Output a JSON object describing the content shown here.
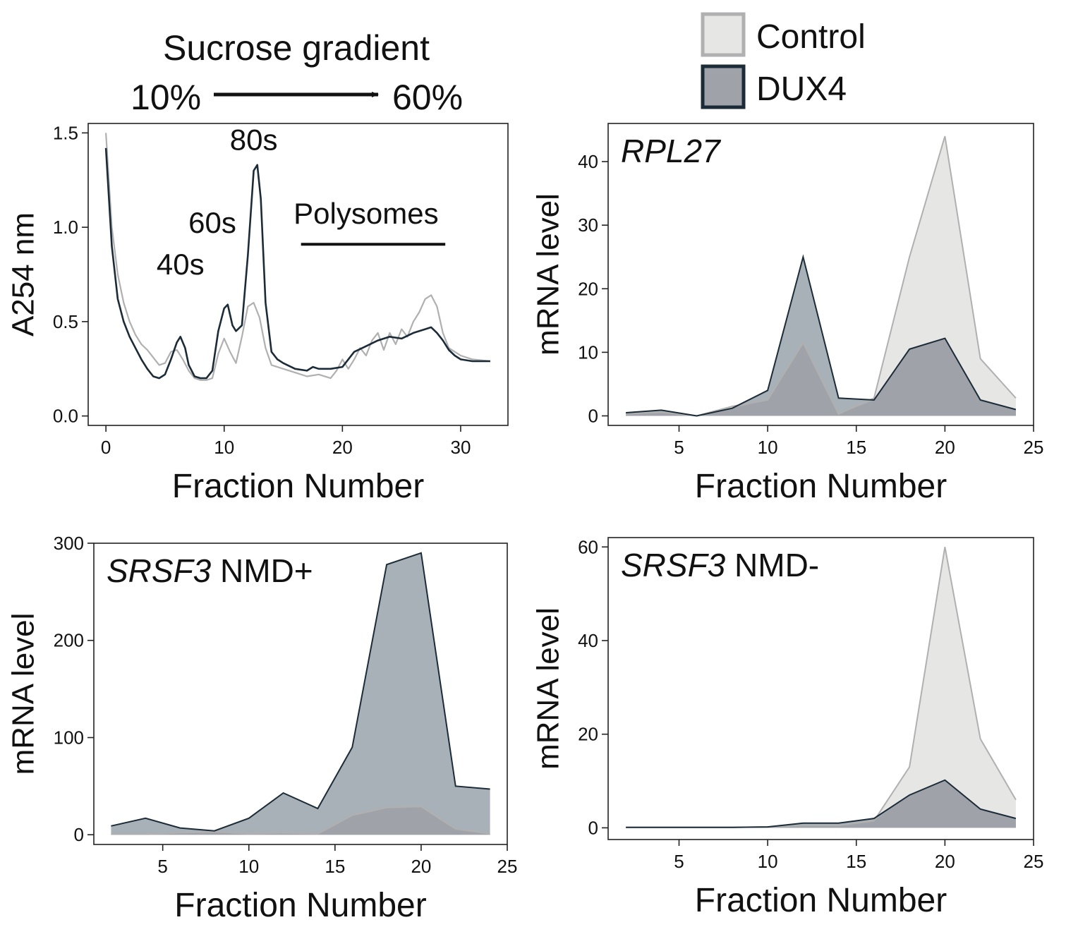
{
  "colors": {
    "control_line": "#b0b0b0",
    "dux4_line": "#1c2b38",
    "control_fill": "#e6e6e4",
    "dux4_fill": "#a9b1b8",
    "overlap_fill": "#9fa3a9",
    "axis": "#222222"
  },
  "legend": {
    "items": [
      {
        "name": "Control",
        "key": "control"
      },
      {
        "name": "DUX4",
        "key": "dux4"
      }
    ]
  },
  "gradient_header": {
    "title": "Sucrose gradient",
    "start": "10%",
    "end": "60%"
  },
  "chart_data": [
    {
      "id": "profile",
      "type": "line",
      "title": "",
      "xlabel": "Fraction Number",
      "ylabel": "A254 nm",
      "xlim": [
        -1.5,
        34
      ],
      "ylim": [
        -0.05,
        1.55
      ],
      "xticks": [
        0,
        10,
        20,
        30
      ],
      "yticks": [
        0.0,
        0.5,
        1.0,
        1.5
      ],
      "ytick_labels": [
        "0.0",
        "0.5",
        "1.0",
        "1.5"
      ],
      "annotations": [
        {
          "label": "40s",
          "x": 6.3,
          "y": 0.75
        },
        {
          "label": "60s",
          "x": 9,
          "y": 0.97
        },
        {
          "label": "80s",
          "x": 12.5,
          "y": 1.41
        },
        {
          "label": "Polysomes",
          "x": 22,
          "y": 1.02,
          "bar_from": 16.5,
          "bar_to": 28.7,
          "bar_y": 0.91
        }
      ],
      "series": [
        {
          "name": "Control",
          "key": "control",
          "points": [
            [
              0,
              1.5
            ],
            [
              0.5,
              1.0
            ],
            [
              1,
              0.75
            ],
            [
              1.5,
              0.6
            ],
            [
              2,
              0.5
            ],
            [
              2.5,
              0.43
            ],
            [
              3,
              0.38
            ],
            [
              3.5,
              0.35
            ],
            [
              4,
              0.31
            ],
            [
              4.5,
              0.27
            ],
            [
              5,
              0.28
            ],
            [
              5.5,
              0.34
            ],
            [
              6,
              0.35
            ],
            [
              6.5,
              0.3
            ],
            [
              7,
              0.24
            ],
            [
              7.5,
              0.2
            ],
            [
              8,
              0.19
            ],
            [
              8.5,
              0.19
            ],
            [
              9,
              0.2
            ],
            [
              9.5,
              0.33
            ],
            [
              10,
              0.41
            ],
            [
              10.5,
              0.34
            ],
            [
              11,
              0.28
            ],
            [
              11.5,
              0.42
            ],
            [
              12,
              0.58
            ],
            [
              12.5,
              0.6
            ],
            [
              13,
              0.52
            ],
            [
              13.5,
              0.36
            ],
            [
              14,
              0.27
            ],
            [
              15,
              0.25
            ],
            [
              16,
              0.23
            ],
            [
              17,
              0.21
            ],
            [
              18,
              0.22
            ],
            [
              19,
              0.2
            ],
            [
              19.5,
              0.24
            ],
            [
              20,
              0.3
            ],
            [
              20.5,
              0.25
            ],
            [
              21,
              0.3
            ],
            [
              21.5,
              0.36
            ],
            [
              22,
              0.32
            ],
            [
              22.5,
              0.4
            ],
            [
              23,
              0.44
            ],
            [
              23.5,
              0.35
            ],
            [
              24,
              0.44
            ],
            [
              24.5,
              0.38
            ],
            [
              25,
              0.46
            ],
            [
              25.5,
              0.42
            ],
            [
              26,
              0.5
            ],
            [
              26.5,
              0.55
            ],
            [
              27,
              0.62
            ],
            [
              27.5,
              0.64
            ],
            [
              28,
              0.58
            ],
            [
              28.5,
              0.44
            ],
            [
              29,
              0.36
            ],
            [
              30,
              0.32
            ],
            [
              31,
              0.3
            ],
            [
              32.5,
              0.29
            ]
          ]
        },
        {
          "name": "DUX4",
          "key": "dux4",
          "points": [
            [
              0,
              1.42
            ],
            [
              0.5,
              0.9
            ],
            [
              1,
              0.62
            ],
            [
              1.5,
              0.5
            ],
            [
              2,
              0.42
            ],
            [
              2.5,
              0.36
            ],
            [
              3,
              0.3
            ],
            [
              3.5,
              0.25
            ],
            [
              4,
              0.21
            ],
            [
              4.5,
              0.2
            ],
            [
              5,
              0.22
            ],
            [
              5.5,
              0.3
            ],
            [
              6,
              0.39
            ],
            [
              6.3,
              0.42
            ],
            [
              6.7,
              0.36
            ],
            [
              7,
              0.27
            ],
            [
              7.5,
              0.21
            ],
            [
              8,
              0.2
            ],
            [
              8.5,
              0.2
            ],
            [
              9,
              0.24
            ],
            [
              9.5,
              0.45
            ],
            [
              10,
              0.57
            ],
            [
              10.3,
              0.59
            ],
            [
              10.7,
              0.48
            ],
            [
              11,
              0.45
            ],
            [
              11.5,
              0.48
            ],
            [
              12,
              0.85
            ],
            [
              12.5,
              1.3
            ],
            [
              12.8,
              1.33
            ],
            [
              13.1,
              1.15
            ],
            [
              13.5,
              0.6
            ],
            [
              14,
              0.34
            ],
            [
              14.5,
              0.3
            ],
            [
              15,
              0.28
            ],
            [
              16,
              0.25
            ],
            [
              17,
              0.24
            ],
            [
              17.5,
              0.26
            ],
            [
              18,
              0.25
            ],
            [
              19,
              0.25
            ],
            [
              20,
              0.26
            ],
            [
              20.5,
              0.3
            ],
            [
              21,
              0.34
            ],
            [
              22,
              0.37
            ],
            [
              23,
              0.4
            ],
            [
              24,
              0.42
            ],
            [
              25,
              0.41
            ],
            [
              26,
              0.44
            ],
            [
              27,
              0.46
            ],
            [
              27.5,
              0.47
            ],
            [
              28,
              0.44
            ],
            [
              28.5,
              0.4
            ],
            [
              29,
              0.35
            ],
            [
              29.5,
              0.32
            ],
            [
              30,
              0.3
            ],
            [
              31,
              0.29
            ],
            [
              32.5,
              0.29
            ]
          ]
        }
      ]
    },
    {
      "id": "rpl27",
      "type": "area",
      "title": "RPL27",
      "title_suffix": "",
      "xlabel": "Fraction Number",
      "ylabel": "mRNA level",
      "xlim": [
        1,
        25
      ],
      "ylim": [
        -1.5,
        46
      ],
      "xticks": [
        5,
        10,
        15,
        20,
        25
      ],
      "yticks": [
        0,
        10,
        20,
        30,
        40
      ],
      "x": [
        2,
        4,
        6,
        8,
        10,
        12,
        14,
        16,
        18,
        20,
        22,
        24
      ],
      "series": [
        {
          "name": "Control",
          "key": "control",
          "values": [
            0.3,
            0.6,
            0,
            1.5,
            2.5,
            11.5,
            0.3,
            2.8,
            25,
            44,
            9,
            2.8
          ]
        },
        {
          "name": "DUX4",
          "key": "dux4",
          "values": [
            0.5,
            0.9,
            0,
            1.2,
            4,
            25,
            2.8,
            2.5,
            10.5,
            12.2,
            2.5,
            1
          ]
        }
      ]
    },
    {
      "id": "srsf3_nmd_plus",
      "type": "area",
      "title": "SRSF3",
      "title_suffix": "NMD+",
      "xlabel": "Fraction Number",
      "ylabel": "mRNA level",
      "xlim": [
        1,
        25
      ],
      "ylim": [
        -10,
        300
      ],
      "xticks": [
        5,
        10,
        15,
        20,
        25
      ],
      "yticks": [
        0,
        100,
        200,
        300
      ],
      "x": [
        2,
        4,
        6,
        8,
        10,
        12,
        14,
        16,
        18,
        20,
        22,
        24
      ],
      "series": [
        {
          "name": "Control",
          "key": "control",
          "values": [
            0.5,
            0.5,
            2,
            3,
            1,
            2,
            1,
            20,
            28,
            29,
            6,
            1
          ]
        },
        {
          "name": "DUX4",
          "key": "dux4",
          "values": [
            9,
            17,
            7,
            4,
            17,
            43,
            27,
            90,
            278,
            290,
            50,
            47
          ]
        }
      ]
    },
    {
      "id": "srsf3_nmd_minus",
      "type": "area",
      "title": "SRSF3",
      "title_suffix": "NMD-",
      "xlabel": "Fraction Number",
      "ylabel": "mRNA level",
      "xlim": [
        1,
        25
      ],
      "ylim": [
        -2.5,
        62
      ],
      "xticks": [
        5,
        10,
        15,
        20,
        25
      ],
      "yticks": [
        0,
        20,
        40,
        60
      ],
      "x": [
        2,
        4,
        6,
        8,
        10,
        12,
        14,
        16,
        18,
        20,
        22,
        24
      ],
      "series": [
        {
          "name": "Control",
          "key": "control",
          "values": [
            0.1,
            0.1,
            0.1,
            0.1,
            0.2,
            0.5,
            0.5,
            1.5,
            13,
            60,
            19,
            6
          ]
        },
        {
          "name": "DUX4",
          "key": "dux4",
          "values": [
            0.1,
            0.1,
            0.1,
            0.1,
            0.2,
            1,
            1,
            2,
            7,
            10.2,
            4,
            2
          ]
        }
      ]
    }
  ]
}
